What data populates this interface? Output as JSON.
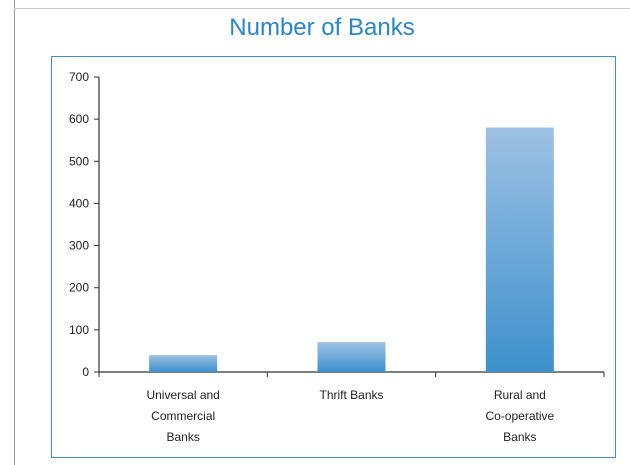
{
  "chart_data": {
    "type": "bar",
    "title": "Number of Banks",
    "xlabel": "",
    "ylabel": "",
    "categories": [
      [
        "Universal and",
        "Commercial",
        "Banks"
      ],
      [
        "Thrift Banks"
      ],
      [
        "Rural and",
        "Co-operative",
        "Banks"
      ]
    ],
    "values": [
      40,
      71,
      580
    ],
    "ylim": [
      0,
      700
    ],
    "yticks": [
      "0",
      "100",
      "200",
      "300",
      "400",
      "500",
      "600",
      "700"
    ],
    "grid": false,
    "legend": "none",
    "colors": {
      "bar_top": "#9dc1e4",
      "bar_bottom": "#3d90cc",
      "title": "#2a86c8",
      "frame": "#3f8fc0",
      "axis": "#333333"
    }
  }
}
